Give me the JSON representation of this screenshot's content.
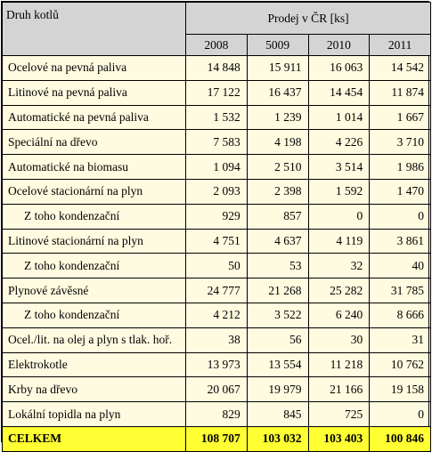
{
  "header": {
    "row_label": "Druh kotlů",
    "group_label": "Prodej v ČR [ks]",
    "years": [
      "2008",
      "5009",
      "2010",
      "2011"
    ]
  },
  "rows": [
    {
      "label": "Ocelové na pevná paliva",
      "values": [
        "14 848",
        "15 911",
        "16 063",
        "14 542"
      ]
    },
    {
      "label": "Litinové na pevná paliva",
      "values": [
        "17 122",
        "16 437",
        "14 454",
        "11 874"
      ]
    },
    {
      "label": "Automatické na pevná paliva",
      "values": [
        "1 532",
        "1 239",
        "1 014",
        "1 667"
      ]
    },
    {
      "label": "Speciální na dřevo",
      "values": [
        "7 583",
        "4 198",
        "4 226",
        "3 710"
      ]
    },
    {
      "label": "Automatické na biomasu",
      "values": [
        "1 094",
        "2 510",
        "3 514",
        "1 986"
      ]
    },
    {
      "label": "Ocelové stacionární na plyn",
      "values": [
        "2 093",
        "2 398",
        "1 592",
        "1 470"
      ]
    },
    {
      "label": "Z toho kondenzační",
      "values": [
        "929",
        "857",
        "0",
        "0"
      ]
    },
    {
      "label": "Litinové stacionární na plyn",
      "values": [
        "4 751",
        "4 637",
        "4 119",
        "3 861"
      ]
    },
    {
      "label": "Z toho kondenzační",
      "values": [
        "50",
        "53",
        "32",
        "40"
      ]
    },
    {
      "label": "Plynové závěsné",
      "values": [
        "24 777",
        "21 268",
        "25 282",
        "31 785"
      ]
    },
    {
      "label": "Z toho kondenzační",
      "values": [
        "4 212",
        "3 522",
        "6 240",
        "8 666"
      ]
    },
    {
      "label": "Ocel./lit. na olej a plyn s tlak. hoř.",
      "values": [
        "38",
        "56",
        "30",
        "31"
      ]
    },
    {
      "label": "Elektrokotle",
      "values": [
        "13 973",
        "13 554",
        "11 218",
        "10 762"
      ]
    },
    {
      "label": "Krby na dřevo",
      "values": [
        "20 067",
        "19 979",
        "21 166",
        "19 158"
      ]
    },
    {
      "label": "Lokální topidla na plyn",
      "values": [
        "829",
        "845",
        "725",
        "0"
      ]
    }
  ],
  "total": {
    "label": "CELKEM",
    "values": [
      "108 707",
      "103 032",
      "103 403",
      "100 846"
    ]
  },
  "colors": {
    "header_bg": "#d4d4d4",
    "body_bg": "#fffbe0",
    "total_bg": "#ffff33"
  }
}
